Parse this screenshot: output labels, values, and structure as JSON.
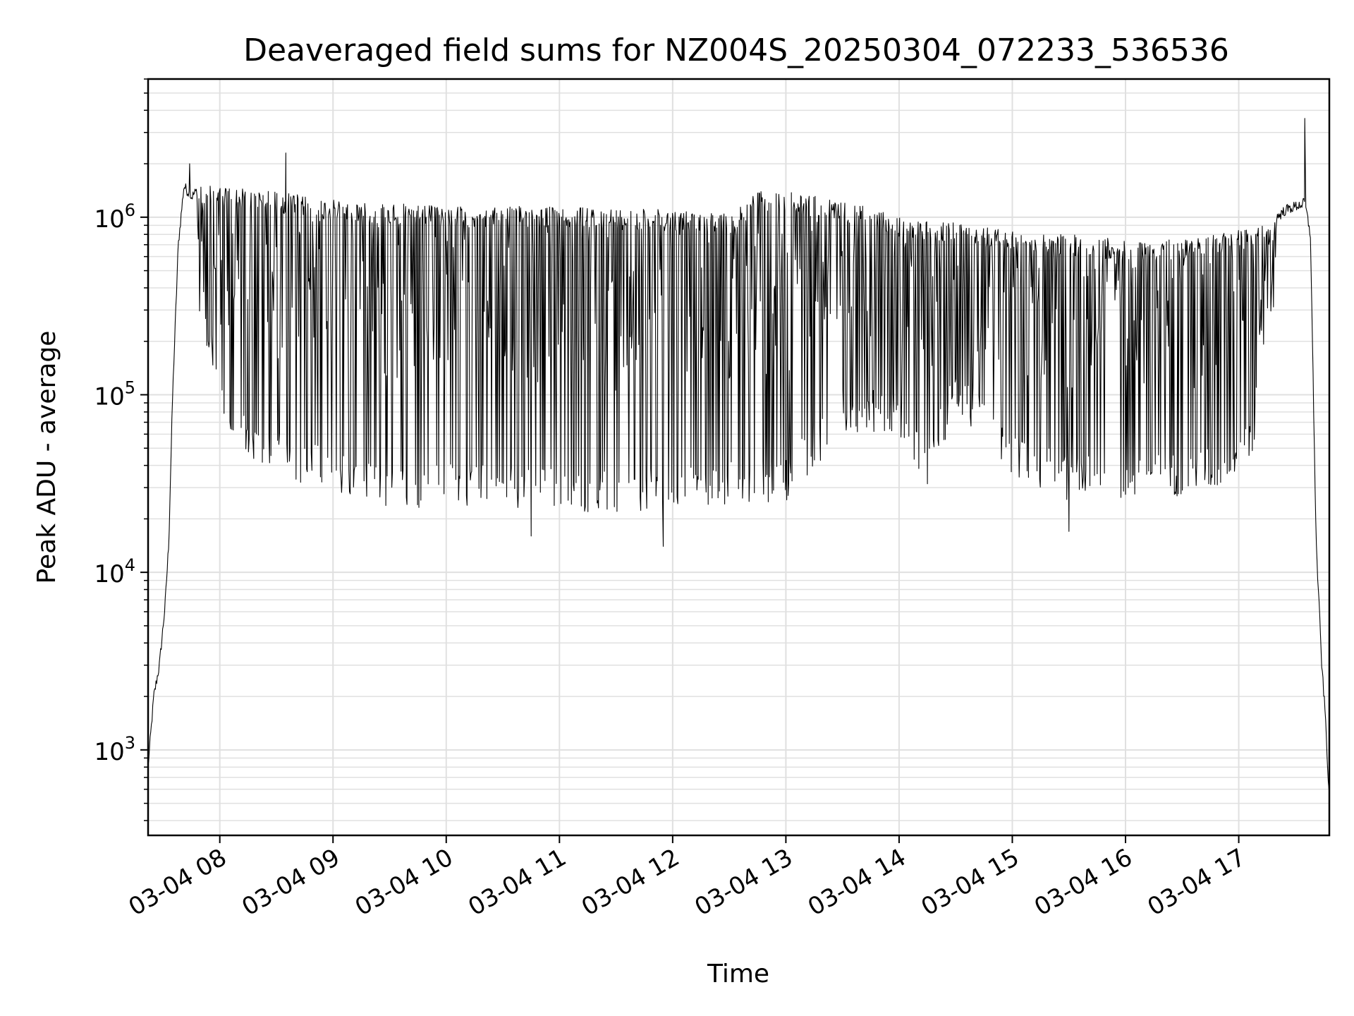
{
  "chart_data": {
    "type": "line",
    "title": "Deaveraged field sums for NZ004S_20250304_072233_536536",
    "xlabel": "Time",
    "ylabel": "Peak ADU - average",
    "yscale": "log",
    "xlim": [
      "2025-03-04 07:22",
      "2025-03-04 17:48"
    ],
    "ylim": [
      330,
      6000000
    ],
    "grid": true,
    "x_ticks": [
      {
        "value": "2025-03-04 08:00",
        "label": "03-04 08"
      },
      {
        "value": "2025-03-04 09:00",
        "label": "03-04 09"
      },
      {
        "value": "2025-03-04 10:00",
        "label": "03-04 10"
      },
      {
        "value": "2025-03-04 11:00",
        "label": "03-04 11"
      },
      {
        "value": "2025-03-04 12:00",
        "label": "03-04 12"
      },
      {
        "value": "2025-03-04 13:00",
        "label": "03-04 13"
      },
      {
        "value": "2025-03-04 14:00",
        "label": "03-04 14"
      },
      {
        "value": "2025-03-04 15:00",
        "label": "03-04 15"
      },
      {
        "value": "2025-03-04 16:00",
        "label": "03-04 16"
      },
      {
        "value": "2025-03-04 17:00",
        "label": "03-04 17"
      }
    ],
    "y_ticks": [
      {
        "value": 1000,
        "base": "10",
        "exp": "3"
      },
      {
        "value": 10000,
        "base": "10",
        "exp": "4"
      },
      {
        "value": 100000,
        "base": "10",
        "exp": "5"
      },
      {
        "value": 1000000,
        "base": "10",
        "exp": "6"
      }
    ],
    "line_color": "#000000",
    "grid_color": "#e0e0e0",
    "envelope_description_note": "",
    "series": [
      {
        "upper_envelope": [
          [
            "2025-03-04 07:22",
            800
          ],
          [
            "2025-03-04 07:25",
            2000
          ],
          [
            "2025-03-04 07:28",
            3000
          ],
          [
            "2025-03-04 07:31",
            6500
          ],
          [
            "2025-03-04 07:33",
            15000
          ],
          [
            "2025-03-04 07:35",
            100000
          ],
          [
            "2025-03-04 07:38",
            700000
          ],
          [
            "2025-03-04 07:41",
            1500000
          ],
          [
            "2025-03-04 07:45",
            1300000
          ],
          [
            "2025-03-04 07:50",
            1500000
          ],
          [
            "2025-03-04 08:00",
            1500000
          ],
          [
            "2025-03-04 08:30",
            1400000
          ],
          [
            "2025-03-04 09:00",
            1250000
          ],
          [
            "2025-03-04 10:00",
            1150000
          ],
          [
            "2025-03-04 11:00",
            1150000
          ],
          [
            "2025-03-04 12:00",
            1100000
          ],
          [
            "2025-03-04 12:30",
            1050000
          ],
          [
            "2025-03-04 12:45",
            1400000
          ],
          [
            "2025-03-04 13:00",
            1400000
          ],
          [
            "2025-03-04 13:30",
            1250000
          ],
          [
            "2025-03-04 14:00",
            1000000
          ],
          [
            "2025-03-04 14:30",
            950000
          ],
          [
            "2025-03-04 15:00",
            850000
          ],
          [
            "2025-03-04 15:30",
            800000
          ],
          [
            "2025-03-04 16:00",
            750000
          ],
          [
            "2025-03-04 16:30",
            750000
          ],
          [
            "2025-03-04 17:00",
            850000
          ],
          [
            "2025-03-04 17:15",
            900000
          ],
          [
            "2025-03-04 17:25",
            1100000
          ],
          [
            "2025-03-04 17:35",
            1200000
          ],
          [
            "2025-03-04 17:38",
            800000
          ],
          [
            "2025-03-04 17:41",
            15000
          ],
          [
            "2025-03-04 17:44",
            3000
          ],
          [
            "2025-03-04 17:46",
            1500
          ],
          [
            "2025-03-04 17:48",
            500
          ]
        ],
        "lower_envelope": [
          [
            "2025-03-04 07:48",
            300000
          ],
          [
            "2025-03-04 07:55",
            150000
          ],
          [
            "2025-03-04 08:00",
            70000
          ],
          [
            "2025-03-04 08:15",
            40000
          ],
          [
            "2025-03-04 08:30",
            35000
          ],
          [
            "2025-03-04 09:00",
            28000
          ],
          [
            "2025-03-04 09:30",
            22000
          ],
          [
            "2025-03-04 10:00",
            24000
          ],
          [
            "2025-03-04 10:30",
            23000
          ],
          [
            "2025-03-04 11:00",
            22000
          ],
          [
            "2025-03-04 11:30",
            21000
          ],
          [
            "2025-03-04 12:00",
            22000
          ],
          [
            "2025-03-04 12:30",
            24000
          ],
          [
            "2025-03-04 13:00",
            25000
          ],
          [
            "2025-03-04 13:30",
            60000
          ],
          [
            "2025-03-04 14:00",
            60000
          ],
          [
            "2025-03-04 14:15",
            30000
          ],
          [
            "2025-03-04 14:30",
            80000
          ],
          [
            "2025-03-04 15:00",
            35000
          ],
          [
            "2025-03-04 15:30",
            25000
          ],
          [
            "2025-03-04 16:00",
            26000
          ],
          [
            "2025-03-04 16:30",
            27000
          ],
          [
            "2025-03-04 17:00",
            30000
          ],
          [
            "2025-03-04 17:08",
            45000
          ],
          [
            "2025-03-04 17:10",
            150000
          ],
          [
            "2025-03-04 17:20",
            300000
          ]
        ],
        "spikes": [
          [
            "2025-03-04 07:44",
            2000000
          ],
          [
            "2025-03-04 08:35",
            2300000
          ],
          [
            "2025-03-04 10:45",
            16000
          ],
          [
            "2025-03-04 11:55",
            14000
          ],
          [
            "2025-03-04 15:30",
            17000
          ],
          [
            "2025-03-04 17:35",
            3600000
          ]
        ]
      }
    ]
  }
}
